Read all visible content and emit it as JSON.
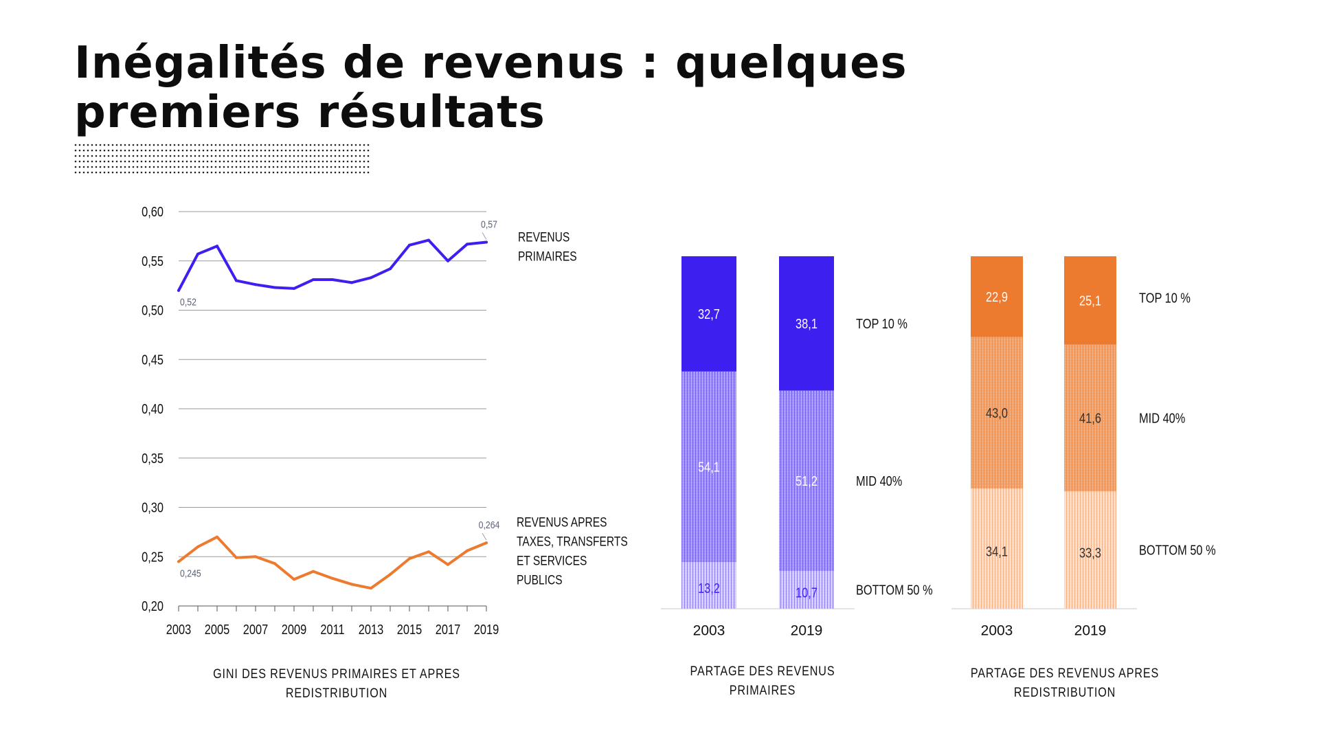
{
  "title_lines": [
    "Inégalités de revenus : quelques",
    "premiers résultats"
  ],
  "colors": {
    "purple": "#3d1ff0",
    "purple_light": "#a396f7",
    "purple_pale": "#d4cdfb",
    "orange": "#ec7a2f",
    "orange_light": "#f2a46e",
    "orange_pale": "#fbdcc6",
    "grid": "#9a9a9a"
  },
  "chart_data": [
    {
      "type": "line",
      "caption": "GINI  DES REVENUS PRIMAIRES ET APRES REDISTRIBUTION",
      "x": [
        2003,
        2004,
        2005,
        2006,
        2007,
        2008,
        2009,
        2010,
        2011,
        2012,
        2013,
        2014,
        2015,
        2016,
        2017,
        2018,
        2019
      ],
      "x_tick_labels": [
        "2003",
        "2005",
        "2007",
        "2009",
        "2011",
        "2013",
        "2015",
        "2017",
        "2019"
      ],
      "y_tick_labels": [
        "0,60",
        "0,55",
        "0,50",
        "0,45",
        "0,40",
        "0,35",
        "0,30",
        "0,25",
        "0,20"
      ],
      "ylim": [
        0.2,
        0.6
      ],
      "grid": true,
      "series": [
        {
          "label_lines": [
            "REVENUS",
            "PRIMAIRES"
          ],
          "color_key": "purple",
          "values": [
            0.52,
            0.557,
            0.565,
            0.53,
            0.526,
            0.523,
            0.522,
            0.531,
            0.531,
            0.528,
            0.533,
            0.542,
            0.566,
            0.571,
            0.55,
            0.567,
            0.569
          ],
          "start_label": "0,52",
          "end_label": "0,57"
        },
        {
          "label_lines": [
            "REVENUS APRES",
            "TAXES, TRANSFERTS",
            "ET SERVICES",
            "PUBLICS"
          ],
          "color_key": "orange",
          "values": [
            0.245,
            0.26,
            0.27,
            0.249,
            0.25,
            0.243,
            0.227,
            0.235,
            0.228,
            0.222,
            0.218,
            0.232,
            0.248,
            0.255,
            0.242,
            0.256,
            0.264
          ],
          "start_label": "0,245",
          "end_label": "0,264"
        }
      ]
    },
    {
      "type": "bar",
      "stacked": true,
      "caption_lines": [
        "PARTAGE DES REVENUS",
        "PRIMAIRES"
      ],
      "categories": [
        "2003",
        "2019"
      ],
      "series": [
        {
          "name": "BOTTOM 50 %",
          "values": [
            13.2,
            10.7
          ],
          "labels": [
            "13,2",
            "10,7"
          ]
        },
        {
          "name": "MID 40%",
          "values": [
            54.1,
            51.2
          ],
          "labels": [
            "54,1",
            "51,2"
          ]
        },
        {
          "name": "TOP 10 %",
          "values": [
            32.7,
            38.1
          ],
          "labels": [
            "32,7",
            "38,1"
          ]
        }
      ]
    },
    {
      "type": "bar",
      "stacked": true,
      "caption_lines": [
        "PARTAGE DES REVENUS APRES",
        "REDISTRIBUTION"
      ],
      "categories": [
        "2003",
        "2019"
      ],
      "series": [
        {
          "name": "BOTTOM 50 %",
          "values": [
            34.1,
            33.3
          ],
          "labels": [
            "34,1",
            "33,3"
          ]
        },
        {
          "name": "MID 40%",
          "values": [
            43.0,
            41.6
          ],
          "labels": [
            "43,0",
            "41,6"
          ]
        },
        {
          "name": "TOP 10 %",
          "values": [
            22.9,
            25.1
          ],
          "labels": [
            "22,9",
            "25,1"
          ]
        }
      ]
    }
  ]
}
